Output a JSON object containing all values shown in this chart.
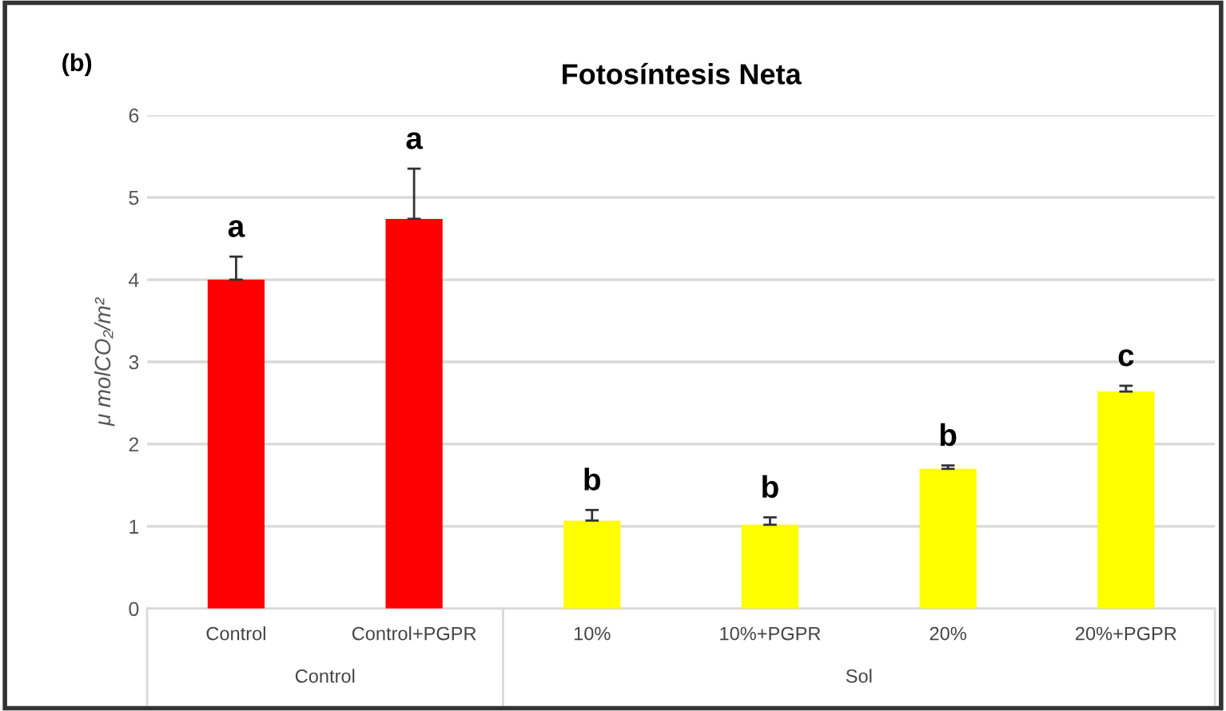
{
  "chart_data": {
    "type": "bar",
    "title": "Fotosíntesis Neta",
    "ylabel": "μ molCO₂/m²",
    "categories": [
      "Control",
      "Control+PGPR",
      "10%",
      "10%+PGPR",
      "20%",
      "20%+PGPR"
    ],
    "values": [
      4.0,
      4.74,
      1.07,
      1.02,
      1.7,
      2.64
    ],
    "errors": [
      0.28,
      0.61,
      0.13,
      0.09,
      0.04,
      0.07
    ],
    "colors": [
      "#ff0000",
      "#ff0000",
      "#ffff00",
      "#ffff00",
      "#ffff00",
      "#ffff00"
    ],
    "value_labels": [
      "a",
      "a",
      "b",
      "b",
      "b",
      "c"
    ],
    "annotations": [
      "(b)",
      "Control",
      "Sol"
    ],
    "ylim": [
      0,
      6
    ],
    "yticks": [
      0,
      1,
      2,
      3,
      4,
      5,
      6
    ],
    "grid": "y"
  }
}
